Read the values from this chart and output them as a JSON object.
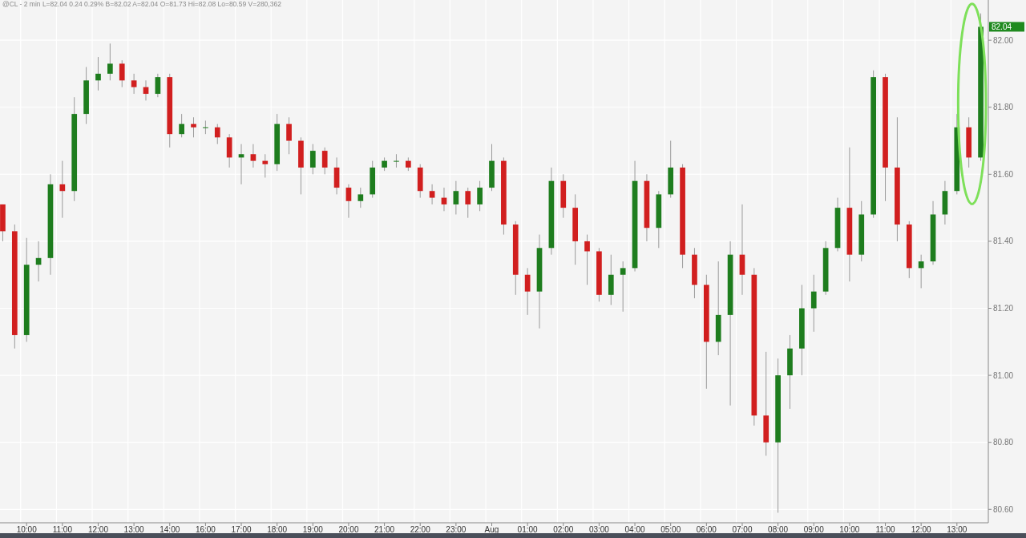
{
  "chart_data": {
    "type": "candlestick",
    "categories": [
      null,
      null,
      "10:00",
      null,
      null,
      "11:00",
      null,
      null,
      "12:00",
      null,
      null,
      "13:00",
      null,
      null,
      "14:00",
      null,
      null,
      "16:00",
      null,
      null,
      "17:00",
      null,
      null,
      "18:00",
      null,
      null,
      "19:00",
      null,
      null,
      "20:00",
      null,
      null,
      "21:00",
      null,
      null,
      "22:00",
      null,
      null,
      "23:00",
      null,
      null,
      "Aug",
      null,
      null,
      "01:00",
      null,
      null,
      "02:00",
      null,
      null,
      "03:00",
      null,
      null,
      "04:00",
      null,
      null,
      "05:00",
      null,
      null,
      "06:00",
      null,
      null,
      "07:00",
      null,
      null,
      "08:00",
      null,
      null,
      "09:00",
      null,
      null,
      "10:00",
      null,
      null,
      "11:00",
      null,
      null,
      "12:00",
      null,
      null,
      "13:00",
      null,
      null
    ],
    "ohlc": [
      [
        81.51,
        81.51,
        81.4,
        81.43
      ],
      [
        81.43,
        81.45,
        81.08,
        81.12
      ],
      [
        81.12,
        81.41,
        81.1,
        81.33
      ],
      [
        81.33,
        81.4,
        81.28,
        81.35
      ],
      [
        81.35,
        81.6,
        81.3,
        81.57
      ],
      [
        81.57,
        81.64,
        81.47,
        81.55
      ],
      [
        81.55,
        81.83,
        81.52,
        81.78
      ],
      [
        81.78,
        81.92,
        81.75,
        81.88
      ],
      [
        81.88,
        81.95,
        81.85,
        81.9
      ],
      [
        81.9,
        81.99,
        81.88,
        81.93
      ],
      [
        81.93,
        81.94,
        81.86,
        81.88
      ],
      [
        81.88,
        81.9,
        81.84,
        81.86
      ],
      [
        81.86,
        81.88,
        81.82,
        81.84
      ],
      [
        81.84,
        81.9,
        81.83,
        81.89
      ],
      [
        81.89,
        81.9,
        81.68,
        81.72
      ],
      [
        81.72,
        81.78,
        81.71,
        81.75
      ],
      [
        81.75,
        81.77,
        81.71,
        81.74
      ],
      [
        81.74,
        81.76,
        81.72,
        81.74
      ],
      [
        81.74,
        81.75,
        81.69,
        81.71
      ],
      [
        81.71,
        81.72,
        81.62,
        81.65
      ],
      [
        81.65,
        81.69,
        81.57,
        81.66
      ],
      [
        81.66,
        81.69,
        81.62,
        81.64
      ],
      [
        81.64,
        81.66,
        81.59,
        81.63
      ],
      [
        81.63,
        81.78,
        81.61,
        81.75
      ],
      [
        81.75,
        81.77,
        81.66,
        81.7
      ],
      [
        81.7,
        81.71,
        81.54,
        81.62
      ],
      [
        81.62,
        81.69,
        81.6,
        81.67
      ],
      [
        81.67,
        81.68,
        81.6,
        81.62
      ],
      [
        81.62,
        81.65,
        81.54,
        81.56
      ],
      [
        81.56,
        81.57,
        81.47,
        81.52
      ],
      [
        81.52,
        81.56,
        81.5,
        81.54
      ],
      [
        81.54,
        81.64,
        81.53,
        81.62
      ],
      [
        81.62,
        81.65,
        81.61,
        81.64
      ],
      [
        81.64,
        81.66,
        81.62,
        81.64
      ],
      [
        81.64,
        81.65,
        81.61,
        81.62
      ],
      [
        81.62,
        81.63,
        81.53,
        81.55
      ],
      [
        81.55,
        81.57,
        81.51,
        81.53
      ],
      [
        81.53,
        81.56,
        81.49,
        81.51
      ],
      [
        81.51,
        81.58,
        81.48,
        81.55
      ],
      [
        81.55,
        81.56,
        81.47,
        81.51
      ],
      [
        81.51,
        81.58,
        81.49,
        81.56
      ],
      [
        81.56,
        81.69,
        81.55,
        81.64
      ],
      [
        81.64,
        81.65,
        81.42,
        81.45
      ],
      [
        81.45,
        81.46,
        81.24,
        81.3
      ],
      [
        81.3,
        81.32,
        81.18,
        81.25
      ],
      [
        81.25,
        81.42,
        81.14,
        81.38
      ],
      [
        81.38,
        81.62,
        81.36,
        81.58
      ],
      [
        81.58,
        81.6,
        81.47,
        81.5
      ],
      [
        81.5,
        81.54,
        81.33,
        81.4
      ],
      [
        81.4,
        81.42,
        81.27,
        81.37
      ],
      [
        81.37,
        81.38,
        81.22,
        81.24
      ],
      [
        81.24,
        81.36,
        81.21,
        81.3
      ],
      [
        81.3,
        81.34,
        81.19,
        81.32
      ],
      [
        81.32,
        81.64,
        81.31,
        81.58
      ],
      [
        81.58,
        81.6,
        81.4,
        81.44
      ],
      [
        81.44,
        81.55,
        81.38,
        81.54
      ],
      [
        81.54,
        81.7,
        81.53,
        81.62
      ],
      [
        81.62,
        81.63,
        81.32,
        81.36
      ],
      [
        81.36,
        81.38,
        81.23,
        81.27
      ],
      [
        81.27,
        81.3,
        80.96,
        81.1
      ],
      [
        81.1,
        81.34,
        81.06,
        81.18
      ],
      [
        81.18,
        81.4,
        80.91,
        81.36
      ],
      [
        81.36,
        81.51,
        81.24,
        81.3
      ],
      [
        81.3,
        81.32,
        80.85,
        80.88
      ],
      [
        80.88,
        81.07,
        80.76,
        80.8
      ],
      [
        80.8,
        81.05,
        80.59,
        81.0
      ],
      [
        81.0,
        81.12,
        80.9,
        81.08
      ],
      [
        81.08,
        81.27,
        81.0,
        81.2
      ],
      [
        81.2,
        81.3,
        81.13,
        81.25
      ],
      [
        81.25,
        81.4,
        81.24,
        81.38
      ],
      [
        81.38,
        81.53,
        81.37,
        81.5
      ],
      [
        81.5,
        81.68,
        81.28,
        81.36
      ],
      [
        81.36,
        81.52,
        81.34,
        81.48
      ],
      [
        81.48,
        81.91,
        81.47,
        81.89
      ],
      [
        81.89,
        81.9,
        81.52,
        81.62
      ],
      [
        81.62,
        81.77,
        81.4,
        81.45
      ],
      [
        81.45,
        81.46,
        81.29,
        81.32
      ],
      [
        81.32,
        81.36,
        81.26,
        81.34
      ],
      [
        81.34,
        81.52,
        81.33,
        81.48
      ],
      [
        81.48,
        81.58,
        81.45,
        81.55
      ],
      [
        81.55,
        81.78,
        81.54,
        81.74
      ],
      [
        81.74,
        81.77,
        81.62,
        81.65
      ],
      [
        81.65,
        82.08,
        81.64,
        82.04
      ]
    ],
    "ylim": [
      80.56,
      82.12
    ],
    "yticks": [
      {
        "value": 80.6,
        "label": "80.60"
      },
      {
        "value": 80.8,
        "label": "80.80"
      },
      {
        "value": 81.0,
        "label": "81.00"
      },
      {
        "value": 81.2,
        "label": "81.20"
      },
      {
        "value": 81.4,
        "label": "81.40"
      },
      {
        "value": 81.6,
        "label": "81.60"
      },
      {
        "value": 81.8,
        "label": "81.80"
      },
      {
        "value": 82.0,
        "label": "82.00"
      }
    ],
    "grid": true,
    "annotations": [
      "@CL - 2 min  L=82.04  0.24  0.29%  B=82.02  A=82.04  O=81.73  Hi=82.08  Lo=80.59  V=280,362",
      "82.04"
    ]
  }
}
